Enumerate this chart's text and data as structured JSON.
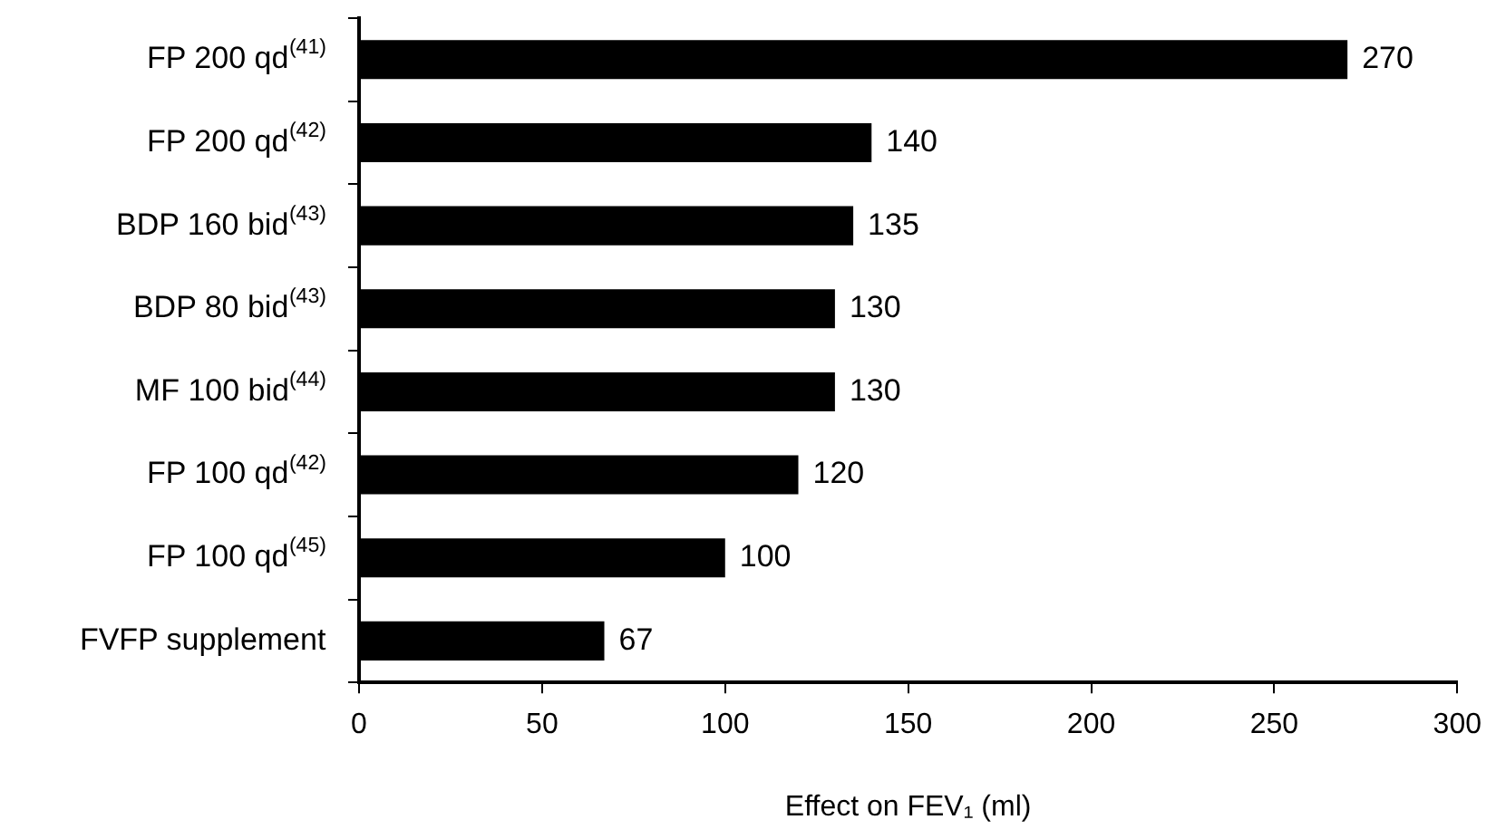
{
  "chart_data": {
    "type": "bar",
    "orientation": "horizontal",
    "categories": [
      "FP 200 qd$^{(41)}$",
      "FP 200 qd$^{(42)}$",
      "BDP 160 bid$^{(43)}$",
      "BDP 80 bid$^{(43)}$",
      "MF 100 bid$^{(44)}$",
      "FP 100 qd$^{(42)}$",
      "FP 100 qd$^{(45)}$",
      "FVFP supplement"
    ],
    "values": [
      270,
      140,
      135,
      130,
      130,
      120,
      100,
      67
    ],
    "color": "#000000",
    "xlabel": "Effect on FEV₁ (ml)",
    "xlim": [
      0,
      300
    ],
    "xticks": [
      0,
      50,
      100,
      150,
      200,
      250,
      300
    ],
    "data_labels": true,
    "grid": false,
    "legend": false
  }
}
